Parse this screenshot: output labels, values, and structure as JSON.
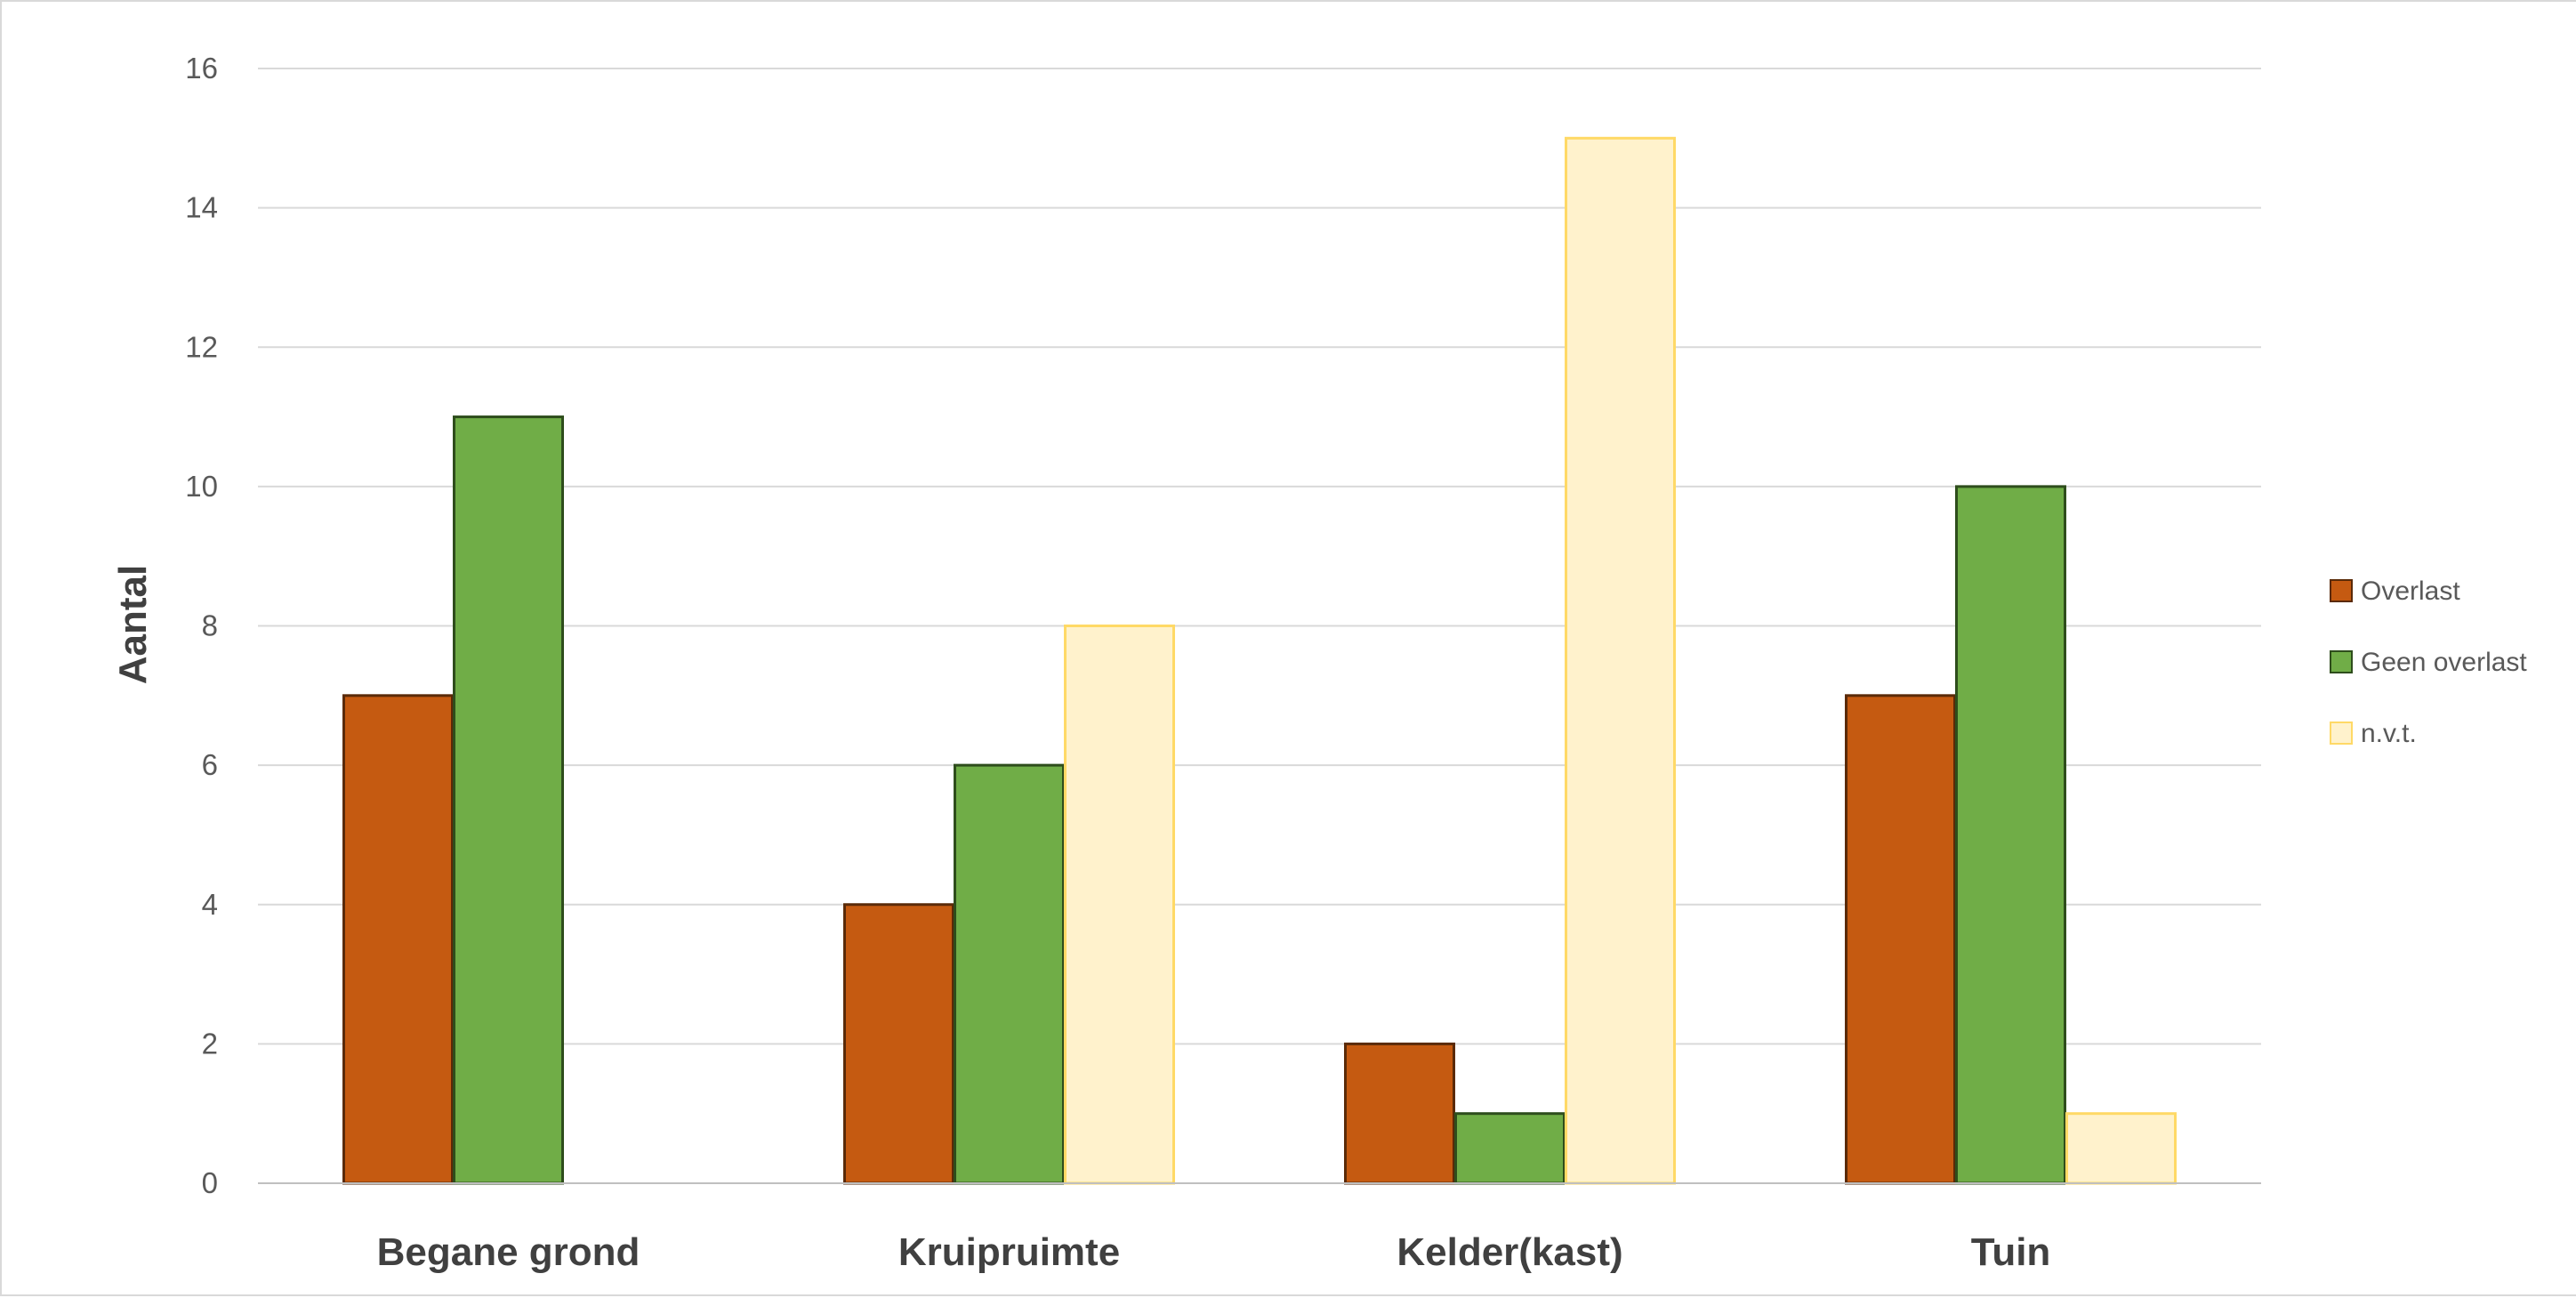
{
  "chart_data": {
    "type": "bar",
    "categories": [
      "Begane grond",
      "Kruipruimte",
      "Kelder(kast)",
      "Tuin"
    ],
    "series": [
      {
        "name": "Overlast",
        "values": [
          7,
          4,
          2,
          7
        ],
        "color": "#c55a11",
        "stroke": "#5a2a08"
      },
      {
        "name": "Geen overlast",
        "values": [
          11,
          6,
          1,
          10
        ],
        "color": "#70ad47",
        "stroke": "#2e4d1c"
      },
      {
        "name": "n.v.t.",
        "values": [
          0,
          8,
          15,
          1
        ],
        "color": "#fff2cc",
        "stroke": "#ffd966"
      }
    ],
    "title": "",
    "xlabel": "",
    "ylabel": "Aantal",
    "ylim": [
      0,
      16
    ],
    "yticks": [
      0,
      2,
      4,
      6,
      8,
      10,
      12,
      14,
      16
    ],
    "grid": true,
    "legend_position": "right"
  }
}
